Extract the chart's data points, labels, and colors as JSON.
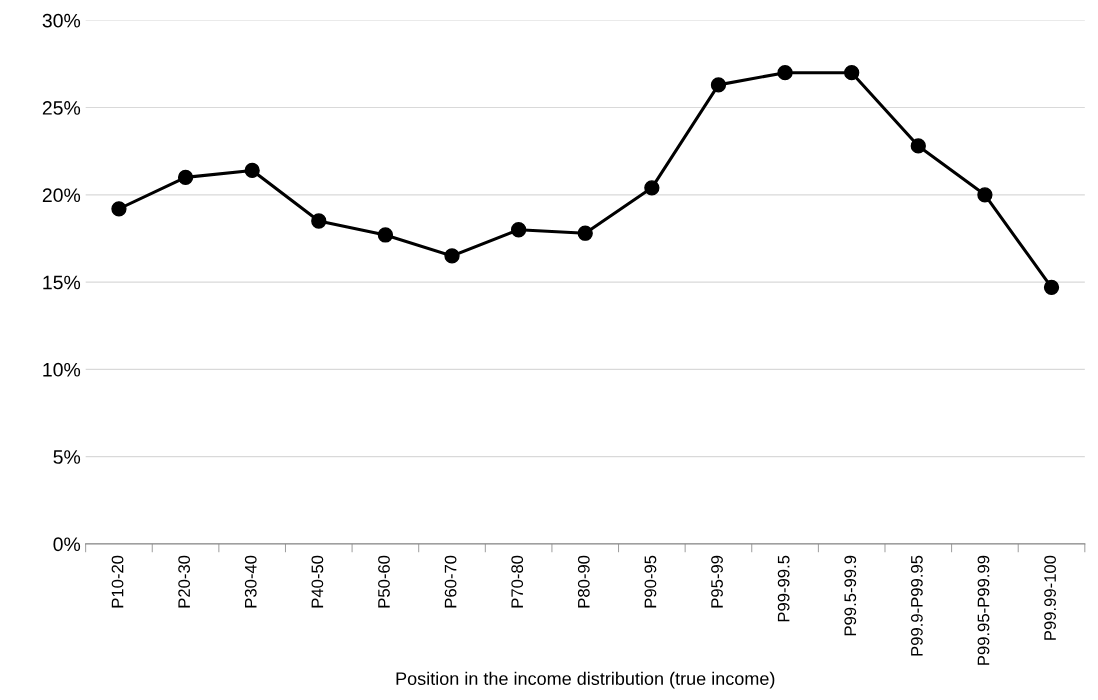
{
  "chart_data": {
    "type": "line",
    "xlabel": "Position in the income distribution (true income)",
    "categories": [
      "P10-20",
      "P20-30",
      "P30-40",
      "P40-50",
      "P50-60",
      "P60-70",
      "P70-80",
      "P80-90",
      "P90-95",
      "P95-99",
      "P99-99.5",
      "P99.5-99.9",
      "P99.9-P99.95",
      "P99.95-P99.99",
      "P99.99-100"
    ],
    "series": [
      {
        "color": "#000000",
        "values": [
          19.2,
          21.0,
          21.4,
          18.5,
          17.7,
          16.5,
          18.0,
          17.8,
          20.4,
          26.3,
          27.0,
          27.0,
          22.8,
          20.0,
          14.7
        ]
      }
    ],
    "ylim": [
      0,
      30
    ],
    "yticks": [
      {
        "value": 0,
        "label": "0%"
      },
      {
        "value": 5,
        "label": "5%"
      },
      {
        "value": 10,
        "label": "10%"
      },
      {
        "value": 15,
        "label": "15%"
      },
      {
        "value": 20,
        "label": "20%"
      },
      {
        "value": 25,
        "label": "25%"
      },
      {
        "value": 30,
        "label": "30%"
      }
    ],
    "grid": "y",
    "marker": "circle",
    "line_style": "solid"
  }
}
